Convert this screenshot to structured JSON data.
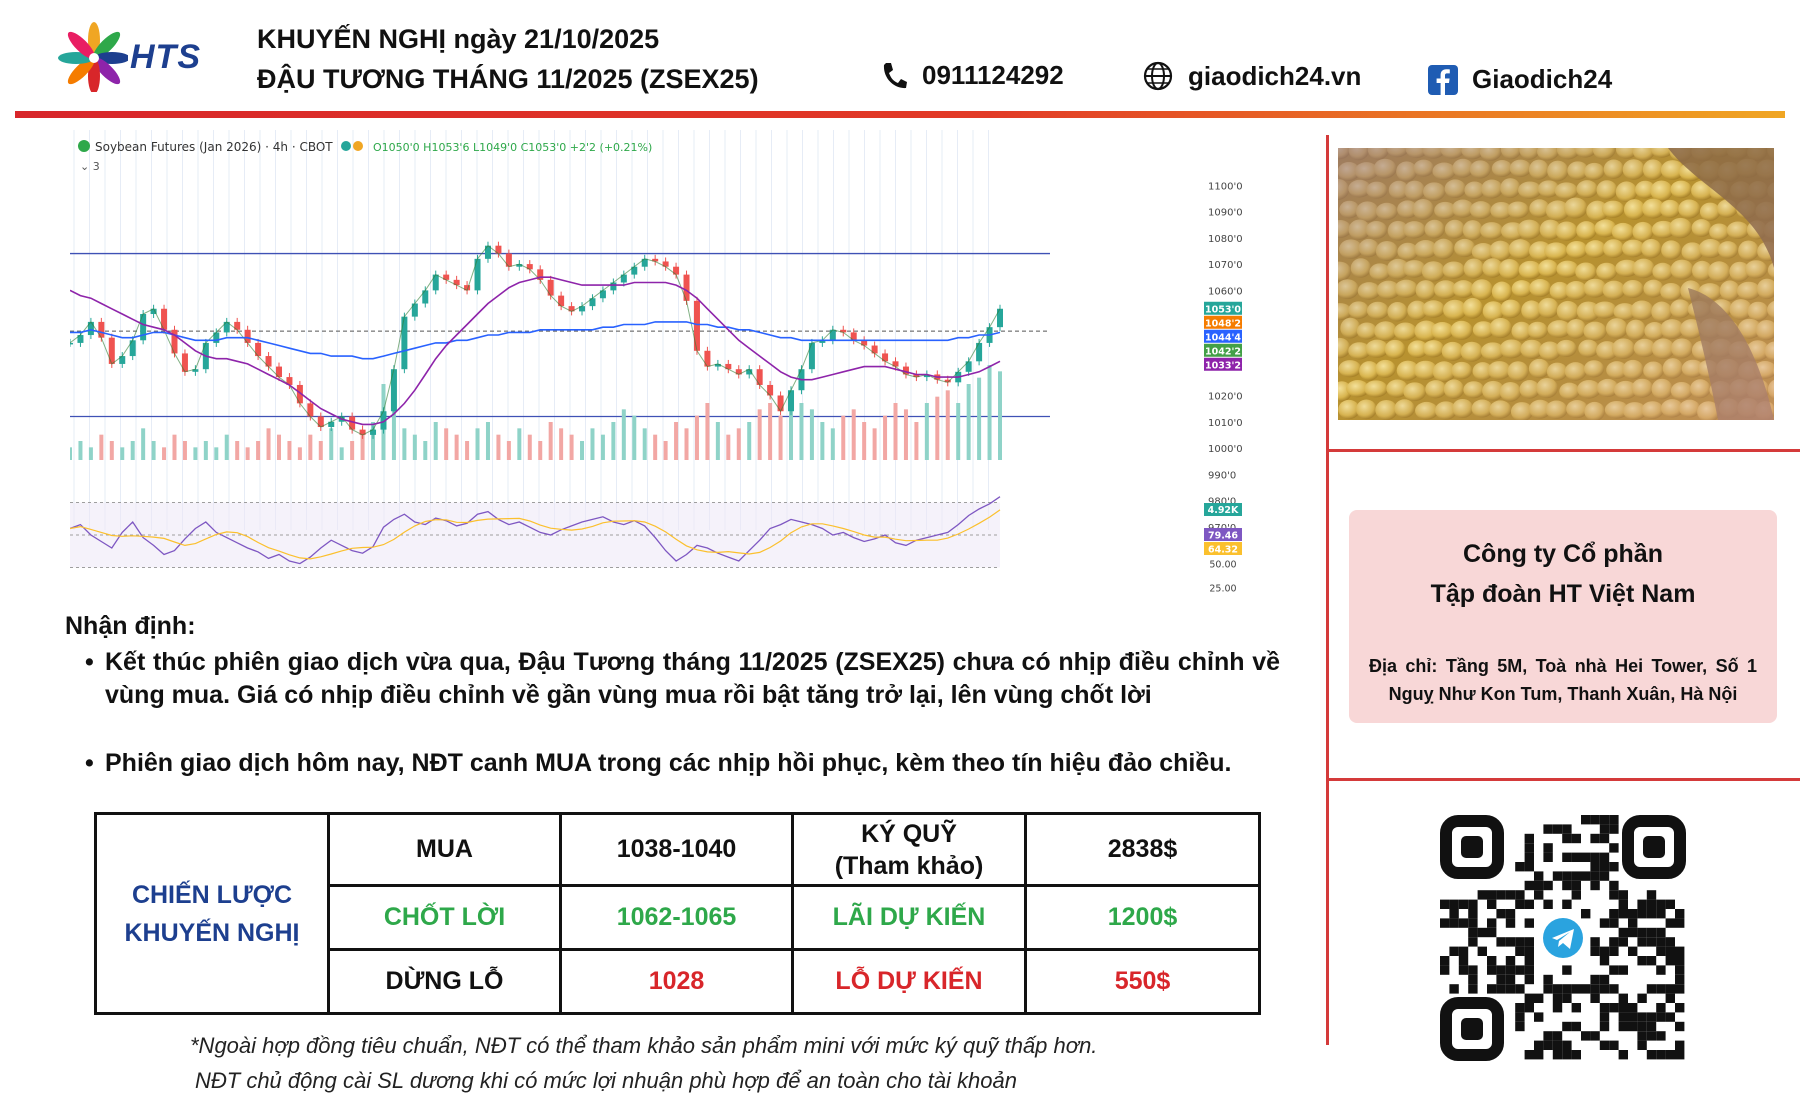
{
  "header": {
    "logo_text": "HTS",
    "title_line1": "KHUYẾN NGHỊ ngày 21/10/2025",
    "title_line2": "ĐẬU TƯƠNG THÁNG 11/2025 (ZSEX25)",
    "phone": "0911124292",
    "website": "giaodich24.vn",
    "facebook": "Giaodich24",
    "accent_colors": [
      "#d8262a",
      "#f0a623"
    ]
  },
  "chart_data": {
    "type": "line",
    "title": "Soybean Futures (Jan 2026) · 4h · CBOT",
    "ohlc_text": "O1050'0 H1053'6 L1049'0 C1053'0 +2'2 (+0.21%)",
    "yaxis_ticks": [
      "1100'0",
      "1090'0",
      "1080'0",
      "1070'0",
      "1060'0",
      "1020'0",
      "1010'0",
      "1000'0",
      "990'0",
      "980'0",
      "970'0"
    ],
    "ylim": [
      965,
      1102
    ],
    "price_labels": [
      {
        "text": "1053'0",
        "value": 1053.0,
        "color": "#26a69a"
      },
      {
        "text": "1048'2",
        "value": 1048.25,
        "color": "#f57c00"
      },
      {
        "text": "1044'4",
        "value": 1044.5,
        "color": "#2962ff"
      },
      {
        "text": "1042'2",
        "value": 1042.25,
        "color": "#43a047"
      },
      {
        "text": "1033'2",
        "value": 1033.25,
        "color": "#8e24aa"
      }
    ],
    "horizontal_levels": [
      1074,
      1012
    ],
    "series": [
      {
        "values": [
          1040,
          1043,
          1048,
          1042,
          1032,
          1035,
          1041,
          1051,
          1053,
          1045,
          1036,
          1029,
          1030,
          1040,
          1044,
          1048,
          1045,
          1040,
          1035,
          1031,
          1027,
          1024,
          1017,
          1012,
          1008,
          1010,
          1012,
          1007,
          1005,
          1007,
          1014,
          1030,
          1050,
          1055,
          1060,
          1066,
          1064,
          1062,
          1060,
          1072,
          1077,
          1074,
          1069,
          1070,
          1068,
          1064,
          1058,
          1054,
          1052,
          1054,
          1057,
          1060,
          1063,
          1066,
          1069,
          1072,
          1071,
          1069,
          1066,
          1056,
          1037,
          1031,
          1032,
          1030,
          1028,
          1030,
          1024,
          1020,
          1014,
          1022,
          1030,
          1040,
          1041,
          1045,
          1044,
          1041,
          1039,
          1036,
          1033,
          1031,
          1028,
          1027,
          1028,
          1026,
          1025,
          1029,
          1033,
          1040,
          1046,
          1053
        ]
      },
      {
        "values": [
          1044,
          1044,
          1045,
          1044,
          1043,
          1042,
          1042,
          1043,
          1044,
          1044,
          1043,
          1042,
          1041,
          1041,
          1041,
          1042,
          1042,
          1042,
          1041,
          1040,
          1039,
          1038,
          1037,
          1036,
          1036,
          1035,
          1035,
          1035,
          1034,
          1034,
          1035,
          1036,
          1037,
          1038,
          1039,
          1040,
          1040,
          1041,
          1041,
          1042,
          1043,
          1043,
          1044,
          1044,
          1044,
          1045,
          1045,
          1045,
          1045,
          1045,
          1045,
          1046,
          1046,
          1047,
          1047,
          1047,
          1048,
          1048,
          1048,
          1048,
          1047,
          1047,
          1046,
          1046,
          1045,
          1045,
          1044,
          1043,
          1042,
          1042,
          1041,
          1041,
          1041,
          1041,
          1041,
          1041,
          1041,
          1041,
          1041,
          1041,
          1041,
          1041,
          1041,
          1041,
          1041,
          1042,
          1042,
          1043,
          1043,
          1044
        ]
      },
      {
        "values": [
          1060,
          1058,
          1057,
          1055,
          1053,
          1051,
          1049,
          1047,
          1046,
          1045,
          1043,
          1040,
          1037,
          1035,
          1034,
          1034,
          1033,
          1032,
          1030,
          1028,
          1026,
          1024,
          1021,
          1018,
          1015,
          1013,
          1011,
          1010,
          1009,
          1009,
          1010,
          1013,
          1017,
          1022,
          1028,
          1034,
          1039,
          1043,
          1047,
          1051,
          1055,
          1058,
          1061,
          1063,
          1064,
          1065,
          1065,
          1064,
          1063,
          1062,
          1062,
          1062,
          1062,
          1062,
          1063,
          1063,
          1063,
          1063,
          1062,
          1060,
          1057,
          1053,
          1049,
          1045,
          1041,
          1038,
          1035,
          1032,
          1029,
          1027,
          1026,
          1026,
          1027,
          1028,
          1029,
          1030,
          1031,
          1031,
          1031,
          1030,
          1029,
          1028,
          1028,
          1027,
          1027,
          1027,
          1028,
          1029,
          1031,
          1033
        ]
      }
    ],
    "volume_label": "4.92K",
    "volume": [
      2,
      3,
      2,
      4,
      3,
      2,
      3,
      5,
      3,
      2,
      4,
      3,
      2,
      3,
      2,
      4,
      3,
      2,
      3,
      5,
      4,
      3,
      2,
      4,
      3,
      5,
      2,
      3,
      4,
      6,
      12,
      8,
      5,
      4,
      3,
      6,
      5,
      4,
      3,
      5,
      6,
      4,
      3,
      5,
      4,
      3,
      6,
      5,
      4,
      3,
      5,
      4,
      6,
      8,
      7,
      5,
      4,
      3,
      6,
      5,
      7,
      9,
      6,
      4,
      5,
      6,
      8,
      9,
      7,
      10,
      9,
      8,
      6,
      5,
      7,
      8,
      6,
      5,
      7,
      9,
      8,
      6,
      9,
      10,
      11,
      9,
      12,
      13,
      15,
      14
    ],
    "rsi_labels": [
      {
        "text": "79.46",
        "value": 79.46,
        "color": "#7e57c2"
      },
      {
        "text": "64.32",
        "value": 64.32,
        "color": "#fbc02d"
      },
      {
        "text": "50.00",
        "value": 50.0,
        "color": null
      },
      {
        "text": "25.00",
        "value": 25.0,
        "color": null
      }
    ],
    "rsi": [
      55,
      58,
      50,
      45,
      40,
      52,
      60,
      48,
      42,
      35,
      38,
      47,
      55,
      60,
      52,
      48,
      44,
      40,
      37,
      32,
      35,
      30,
      28,
      33,
      40,
      46,
      42,
      38,
      36,
      41,
      56,
      62,
      66,
      60,
      58,
      63,
      61,
      57,
      59,
      66,
      68,
      62,
      58,
      60,
      56,
      52,
      50,
      54,
      57,
      60,
      62,
      64,
      60,
      58,
      61,
      57,
      48,
      38,
      30,
      35,
      42,
      40,
      36,
      33,
      30,
      38,
      46,
      55,
      58,
      62,
      60,
      58,
      55,
      50,
      52,
      48,
      45,
      47,
      50,
      44,
      42,
      46,
      48,
      50,
      52,
      58,
      65,
      70,
      74,
      79.46
    ],
    "grid": true
  },
  "analysis": {
    "heading": "Nhận định:",
    "bullets": [
      "Kết thúc phiên giao dịch vừa qua, Đậu Tương tháng 11/2025 (ZSEX25) chưa có nhịp điều chỉnh về vùng mua. Giá có nhịp điều chỉnh về gần vùng mua rồi bật tăng trở lại, lên vùng chốt lời",
      "Phiên giao dịch hôm nay, NĐT canh MUA trong các nhịp hồi phục, kèm theo tín hiệu đảo chiều."
    ]
  },
  "strategy": {
    "label": "CHIẾN LƯỢC KHUYẾN NGHỊ",
    "rows": [
      {
        "action": "MUA",
        "price": "1038-1040",
        "metric_label": "KÝ QUỸ (Tham khảo)",
        "metric_value": "2838$"
      },
      {
        "action": "CHỐT LỜI",
        "price": "1062-1065",
        "metric_label": "LÃI DỰ KIẾN",
        "metric_value": "1200$"
      },
      {
        "action": "DỪNG LỖ",
        "price": "1028",
        "metric_label": "LỖ DỰ KIẾN",
        "metric_value": "550$"
      }
    ]
  },
  "footnotes": [
    "*Ngoài hợp đồng tiêu chuẩn, NĐT có thể tham khảo sản phẩm mini với mức ký quỹ thấp hơn.",
    "NĐT chủ động cài SL dương khi có mức lợi nhuận phù hợp để an toàn cho tài khoản"
  ],
  "company": {
    "name_line1": "Công ty Cổ phần",
    "name_line2": "Tập đoàn HT Việt Nam",
    "address": "Địa chỉ: Tầng 5M, Toà nhà Hei Tower, Số 1 Nguỵ Như Kon Tum, Thanh Xuân, Hà Nội"
  },
  "icons": [
    "phone-icon",
    "globe-icon",
    "facebook-icon",
    "telegram-icon"
  ]
}
